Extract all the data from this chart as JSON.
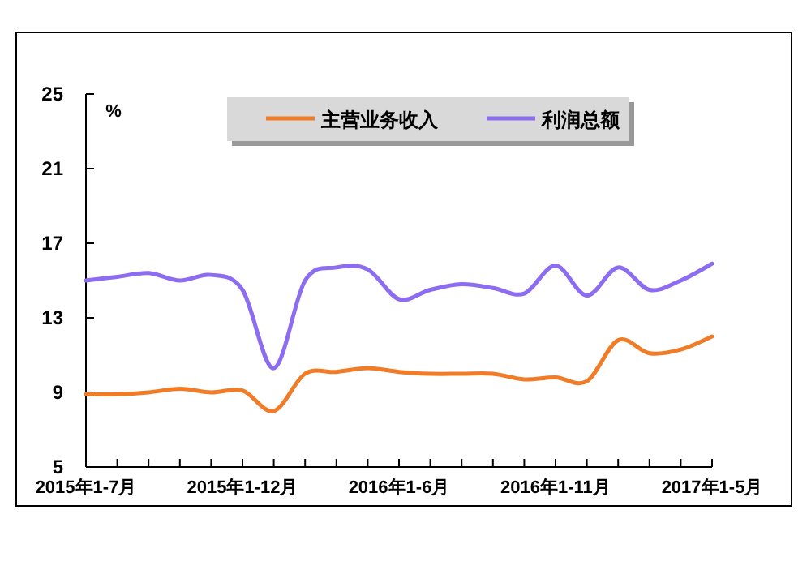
{
  "chart_data": {
    "type": "line",
    "ylabel": "%",
    "categories": [
      "2015年1-7月",
      null,
      null,
      null,
      null,
      "2015年1-12月",
      null,
      null,
      null,
      null,
      "2016年1-6月",
      null,
      null,
      null,
      null,
      "2016年1-11月",
      null,
      null,
      null,
      null,
      "2017年1-5月"
    ],
    "series": [
      {
        "name": "主营业务收入",
        "color": "#f07c28",
        "values": [
          8.9,
          8.9,
          9.0,
          9.2,
          9.0,
          9.1,
          8.0,
          10.0,
          10.1,
          10.3,
          10.1,
          10.0,
          10.0,
          10.0,
          9.7,
          9.8,
          9.6,
          11.8,
          11.1,
          11.3,
          12.0
        ]
      },
      {
        "name": "利润总额",
        "color": "#8c6cf0",
        "values": [
          15.0,
          15.2,
          15.4,
          15.0,
          15.3,
          14.5,
          10.3,
          15.0,
          15.7,
          15.6,
          14.0,
          14.5,
          14.8,
          14.6,
          14.3,
          15.8,
          14.2,
          15.7,
          14.5,
          15.0,
          15.9
        ]
      }
    ],
    "ylim": [
      5,
      25
    ],
    "yticks": [
      5,
      9,
      13,
      17,
      21,
      25
    ],
    "legend": "top",
    "grid": false
  }
}
